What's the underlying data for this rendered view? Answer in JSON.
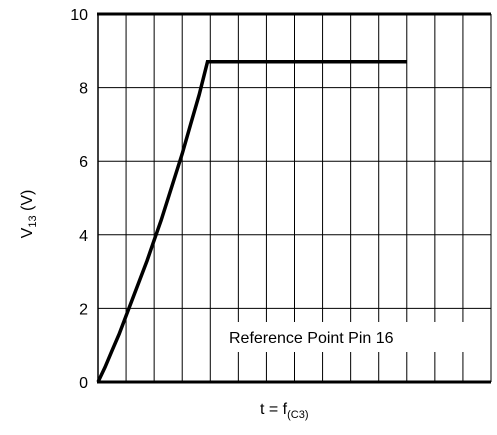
{
  "chart_data": {
    "type": "line",
    "xlabel_main": "t = f",
    "xlabel_sub": "(C3)",
    "ylabel_main": "V",
    "ylabel_sub": "13",
    "ylabel_unit": " (V)",
    "ylim": [
      0,
      10
    ],
    "yticks": [
      "0",
      "2",
      "4",
      "6",
      "8",
      "10"
    ],
    "x_divisions": 14,
    "grid": true,
    "annotation": "Reference Point Pin 16",
    "series": [
      {
        "x": [
          0,
          0.25,
          0.5,
          0.75,
          1.0,
          1.25,
          1.5,
          1.75,
          2.0,
          2.25,
          2.5,
          2.75,
          3.0,
          3.3,
          3.6,
          3.9,
          4.2,
          4.5,
          4.8,
          5.1,
          5.4,
          5.7,
          6.0,
          6.3,
          6.6,
          6.9,
          7.2,
          7.6,
          8.0,
          8.4,
          8.8,
          9.2,
          9.6,
          10.0,
          11.0
        ],
        "y": [
          0.0,
          0.4,
          0.85,
          1.3,
          1.8,
          2.3,
          2.8,
          3.3,
          3.85,
          4.4,
          5.0,
          5.6,
          6.2,
          7.0,
          7.8,
          8.7,
          8.7,
          8.7,
          8.7,
          8.7,
          8.7,
          8.7,
          8.7,
          8.7,
          8.7,
          8.7,
          8.7,
          8.7,
          8.7,
          8.7,
          8.7,
          8.7,
          8.7,
          8.7,
          8.7
        ]
      }
    ],
    "xlim": [
      0,
      14
    ]
  }
}
